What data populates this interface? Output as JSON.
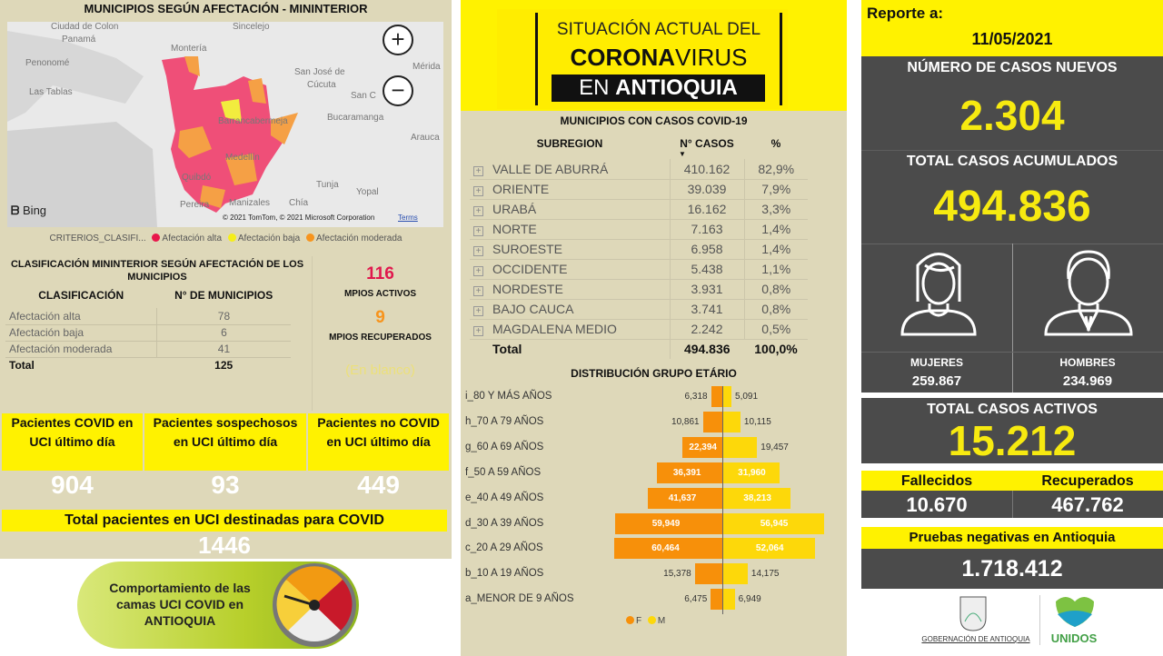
{
  "left": {
    "title": "MUNICIPIOS SEGÚN AFECTACIÓN - MININTERIOR",
    "map": {
      "cities": [
        "Ciudad de Colon",
        "Panamá",
        "Penonomé",
        "Las Tablas",
        "Montería",
        "Sincelejo",
        "San José de",
        "Cúcuta",
        "Mérida",
        "San C",
        "Bucaramanga",
        "Barrancabermeja",
        "Arauca",
        "Medellín",
        "Quibdó",
        "Tunja",
        "Yopal",
        "Manizales",
        "Pereira",
        "Chía"
      ],
      "bing": "Bing",
      "copyright": "© 2021 TomTom, © 2021 Microsoft Corporation",
      "terms": "Terms",
      "zoom_in": "+",
      "zoom_out": "−"
    },
    "legend": {
      "title": "CRITERIOS_CLASIFI...",
      "items": [
        {
          "label": "Afectación alta",
          "color": "#e8174a"
        },
        {
          "label": "Afectación baja",
          "color": "#f5ee1a"
        },
        {
          "label": "Afectación moderada",
          "color": "#f7941d"
        }
      ]
    },
    "classification": {
      "title": "CLASIFICACIÓN MININTERIOR SEGÚN AFECTACIÓN DE LOS MUNICIPIOS",
      "headers": [
        "CLASIFICACIÓN",
        "N° DE MUNICIPIOS"
      ],
      "rows": [
        [
          "Afectación alta",
          "78"
        ],
        [
          "Afectación baja",
          "6"
        ],
        [
          "Afectación moderada",
          "41"
        ]
      ],
      "total": [
        "Total",
        "125"
      ]
    },
    "mpios": {
      "active_value": "116",
      "active_label": "MPIOS ACTIVOS",
      "recovered_value": "9",
      "recovered_label": "MPIOS RECUPERADOS",
      "blank": "(En blanco)"
    },
    "uci": [
      {
        "label": "Pacientes COVID en UCI último día",
        "value": "904"
      },
      {
        "label": "Pacientes sospechosos en UCI último día",
        "value": "93"
      },
      {
        "label": "Pacientes no COVID en UCI último día",
        "value": "449"
      }
    ],
    "uci_total": {
      "label": "Total pacientes en UCI destinadas para COVID",
      "value": "1446"
    },
    "gauge_button": "Comportamiento de las camas UCI COVID en ANTIOQUIA"
  },
  "middle": {
    "poster": {
      "line1": "SITUACIÓN ACTUAL DEL",
      "line2a": "CORONA",
      "line2b": "VIRUS",
      "line3a": "EN ",
      "line3b": "ANTIOQUIA"
    },
    "table": {
      "title": "MUNICIPIOS CON CASOS COVID-19",
      "headers": [
        "SUBREGION",
        "N° CASOS",
        "%"
      ],
      "rows": [
        [
          "VALLE DE ABURRÁ",
          "410.162",
          "82,9%"
        ],
        [
          "ORIENTE",
          "39.039",
          "7,9%"
        ],
        [
          "URABÁ",
          "16.162",
          "3,3%"
        ],
        [
          "NORTE",
          "7.163",
          "1,4%"
        ],
        [
          "SUROESTE",
          "6.958",
          "1,4%"
        ],
        [
          "OCCIDENTE",
          "5.438",
          "1,1%"
        ],
        [
          "NORDESTE",
          "3.931",
          "0,8%"
        ],
        [
          "BAJO CAUCA",
          "3.741",
          "0,8%"
        ],
        [
          "MAGDALENA MEDIO",
          "2.242",
          "0,5%"
        ]
      ],
      "total": [
        "Total",
        "494.836",
        "100,0%"
      ]
    }
  },
  "chart_data": {
    "type": "bar",
    "title": "DISTRIBUCIÓN GRUPO ETÁRIO",
    "categories": [
      "i_80 Y MÁS AÑOS",
      "h_70 A 79 AÑOS",
      "g_60 A 69 AÑOS",
      "f_50 A 59 AÑOS",
      "e_40 A 49 AÑOS",
      "d_30 A 39 AÑOS",
      "c_20 A 29 AÑOS",
      "b_10 A 19 AÑOS",
      "a_MENOR DE 9 AÑOS"
    ],
    "series": [
      {
        "name": "F",
        "color": "#f7900a",
        "values": [
          6318,
          10861,
          22394,
          36391,
          41637,
          59949,
          60464,
          15378,
          6475
        ],
        "labels": [
          "6,318",
          "10,861",
          "22,394",
          "36,391",
          "41,637",
          "59,949",
          "60,464",
          "15,378",
          "6,475"
        ]
      },
      {
        "name": "M",
        "color": "#fdd80a",
        "values": [
          5091,
          10115,
          19457,
          31960,
          38213,
          56945,
          52064,
          14175,
          6949
        ],
        "labels": [
          "5,091",
          "10,115",
          "19,457",
          "31,960",
          "38,213",
          "56,945",
          "52,064",
          "14,175",
          "6,949"
        ]
      }
    ],
    "legend": "bottom"
  },
  "right": {
    "report_label": "Reporte a:",
    "date": "11/05/2021",
    "new_cases_label": "NÚMERO DE CASOS NUEVOS",
    "new_cases": "2.304",
    "total_label": "TOTAL CASOS ACUMULADOS",
    "total": "494.836",
    "women_label": "MUJERES",
    "women": "259.867",
    "men_label": "HOMBRES",
    "men": "234.969",
    "active_label": "TOTAL CASOS ACTIVOS",
    "active": "15.212",
    "deaths_label": "Fallecidos",
    "deaths": "10.670",
    "recovered_label": "Recuperados",
    "recovered": "467.762",
    "negative_label": "Pruebas negativas en Antioquia",
    "negative": "1.718.412",
    "logo_gov": "GOBERNACIÓN DE ANTIOQUIA",
    "logo_unidos": "UNIDOS"
  }
}
